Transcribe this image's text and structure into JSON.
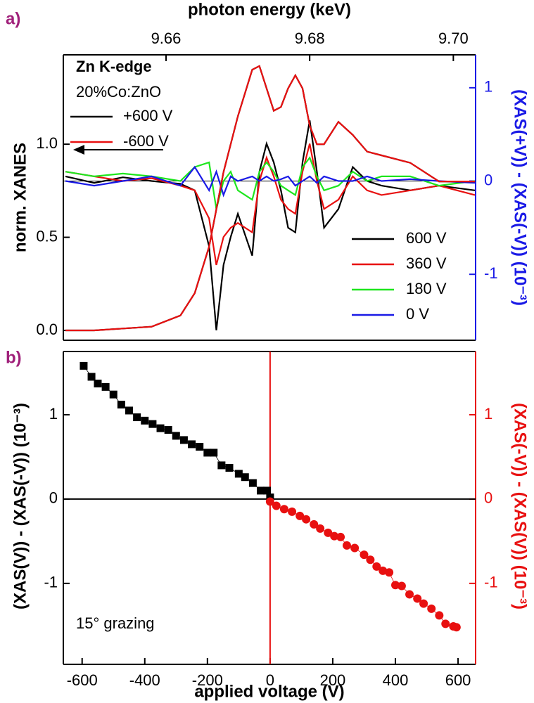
{
  "chart_data": [
    {
      "type": "line",
      "panel_label": "a)",
      "xlabel": "photon energy (keV)",
      "ylabel": "norm. XANES",
      "y2label": "(XAS(+V)) - (XAS(-V)) (10⁻³)",
      "y2_color": "#1a1ae6",
      "xaxis_position": "top",
      "xlim": [
        9.6457,
        9.7031
      ],
      "xticks": [
        9.66,
        9.68,
        {
          "value": 9.7,
          "label": "9.70"
        }
      ],
      "ylim": [
        -0.053,
        1.48
      ],
      "yticks": [
        {
          "value": 0,
          "label": "0.0"
        },
        0.5,
        {
          "value": 1,
          "label": "1.0"
        }
      ],
      "y2lim": [
        -1.707,
        1.353
      ],
      "y2ticks": [
        -1,
        0,
        1
      ],
      "hline_y2": 0,
      "annotations": [
        "Zn K-edge",
        "20%Co:ZnO"
      ],
      "legend_y": "upper left",
      "legend_y2": "lower right",
      "x": [
        9.646,
        9.65,
        9.654,
        9.658,
        9.662,
        9.664,
        9.666,
        9.667,
        9.668,
        9.669,
        9.67,
        9.672,
        9.673,
        9.674,
        9.675,
        9.676,
        9.677,
        9.678,
        9.679,
        9.68,
        9.681,
        9.682,
        9.684,
        9.686,
        9.688,
        9.69,
        9.694,
        9.698,
        9.703
      ],
      "series": [
        {
          "name": "600 V",
          "color": "#000000",
          "axis": "y2",
          "values": [
            0.05,
            -0.02,
            0.04,
            0.0,
            -0.03,
            -0.1,
            -0.7,
            -1.6,
            -0.9,
            -0.6,
            -0.35,
            -0.8,
            0.1,
            0.4,
            0.2,
            -0.1,
            -0.5,
            -0.55,
            0.2,
            0.65,
            0.1,
            -0.5,
            -0.3,
            0.15,
            0.0,
            -0.05,
            -0.1,
            -0.05,
            -0.1
          ]
        },
        {
          "name": "360 V",
          "color": "#e81010",
          "axis": "y2",
          "values": [
            0.1,
            0.05,
            0.0,
            0.03,
            -0.05,
            -0.1,
            -0.4,
            -0.9,
            -0.6,
            -0.5,
            -0.45,
            -0.55,
            0.0,
            0.25,
            0.05,
            -0.2,
            -0.3,
            -0.35,
            0.1,
            0.4,
            0.0,
            -0.3,
            -0.2,
            0.05,
            -0.1,
            -0.15,
            -0.1,
            -0.05,
            -0.15
          ]
        },
        {
          "name": "180 V",
          "color": "#1ee61e",
          "axis": "y2",
          "values": [
            0.1,
            0.05,
            0.08,
            0.05,
            0.0,
            0.15,
            0.2,
            -0.3,
            0.0,
            0.1,
            -0.1,
            -0.2,
            0.1,
            0.2,
            0.1,
            -0.05,
            -0.1,
            -0.15,
            0.15,
            0.25,
            0.05,
            -0.1,
            -0.05,
            0.1,
            0.0,
            0.05,
            0.05,
            -0.05,
            0.0
          ]
        },
        {
          "name": "0 V",
          "color": "#1a1ae6",
          "axis": "y2",
          "values": [
            0.0,
            -0.05,
            0.0,
            0.05,
            -0.05,
            0.15,
            -0.1,
            0.1,
            -0.15,
            0.05,
            0.0,
            0.05,
            0.0,
            0.05,
            0.0,
            0.02,
            0.05,
            -0.05,
            0.0,
            0.05,
            -0.02,
            0.05,
            0.0,
            0.0,
            0.05,
            0.0,
            0.02,
            0.0,
            -0.02
          ]
        },
        {
          "name": "+600 V",
          "color": "#000000",
          "axis": "y",
          "values": [
            0.0,
            0.0,
            0.01,
            0.02,
            0.08,
            0.2,
            0.45,
            0.65,
            0.85,
            1.0,
            1.15,
            1.4,
            1.42,
            1.3,
            1.18,
            1.2,
            1.3,
            1.37,
            1.3,
            1.1,
            1.0,
            1.0,
            1.12,
            1.05,
            0.96,
            0.94,
            0.9,
            0.8,
            0.8
          ]
        },
        {
          "name": "-600 V",
          "color": "#e81010",
          "axis": "y",
          "values": [
            0.0,
            0.0,
            0.01,
            0.02,
            0.08,
            0.2,
            0.45,
            0.65,
            0.85,
            1.0,
            1.15,
            1.4,
            1.42,
            1.3,
            1.18,
            1.2,
            1.3,
            1.37,
            1.3,
            1.1,
            1.0,
            1.0,
            1.12,
            1.05,
            0.96,
            0.94,
            0.9,
            0.8,
            0.8
          ]
        }
      ]
    },
    {
      "type": "scatter",
      "panel_label": "b)",
      "xlabel": "applied voltage (V)",
      "ylabel": "(XAS(V)) - (XAS(-V)) (10⁻³)",
      "y2label": "(XAS(-V)) - (XAS(V)) (10⁻³)",
      "y2_color": "#e81010",
      "xaxis_position": "bottom",
      "xlim": [
        -660,
        656
      ],
      "xticks": [
        -600,
        -400,
        -200,
        0,
        200,
        400,
        600
      ],
      "ylim": [
        -1.96,
        1.75
      ],
      "yticks": [
        -1,
        0,
        1
      ],
      "y2lim": [
        -1.96,
        1.75
      ],
      "y2ticks": [
        -1,
        0,
        1
      ],
      "hline": 0,
      "vline": 0,
      "vline_color": "#e81010",
      "annotations": [
        "15° grazing"
      ],
      "series": [
        {
          "color": "#000000",
          "marker": "square",
          "axis": "y",
          "x": [
            -595,
            -570,
            -550,
            -525,
            -500,
            -475,
            -450,
            -425,
            -400,
            -375,
            -350,
            -325,
            -300,
            -275,
            -250,
            -225,
            -200,
            -180,
            -155,
            -130,
            -100,
            -80,
            -55,
            -30,
            -10,
            0
          ],
          "values": [
            1.58,
            1.45,
            1.37,
            1.33,
            1.24,
            1.12,
            1.05,
            0.97,
            0.93,
            0.89,
            0.84,
            0.82,
            0.75,
            0.7,
            0.65,
            0.62,
            0.55,
            0.55,
            0.4,
            0.37,
            0.3,
            0.26,
            0.19,
            0.1,
            0.1,
            0.02
          ]
        },
        {
          "color": "#e81010",
          "marker": "circle",
          "axis": "y2",
          "x": [
            0,
            20,
            45,
            70,
            95,
            115,
            140,
            160,
            185,
            205,
            225,
            245,
            270,
            300,
            320,
            340,
            360,
            380,
            400,
            420,
            445,
            470,
            490,
            515,
            540,
            560,
            585,
            595
          ],
          "values": [
            -0.03,
            -0.08,
            -0.12,
            -0.15,
            -0.2,
            -0.24,
            -0.3,
            -0.35,
            -0.4,
            -0.44,
            -0.45,
            -0.55,
            -0.58,
            -0.66,
            -0.72,
            -0.8,
            -0.85,
            -0.87,
            -1.02,
            -1.03,
            -1.13,
            -1.18,
            -1.24,
            -1.3,
            -1.38,
            -1.48,
            -1.51,
            -1.52
          ]
        }
      ]
    }
  ]
}
